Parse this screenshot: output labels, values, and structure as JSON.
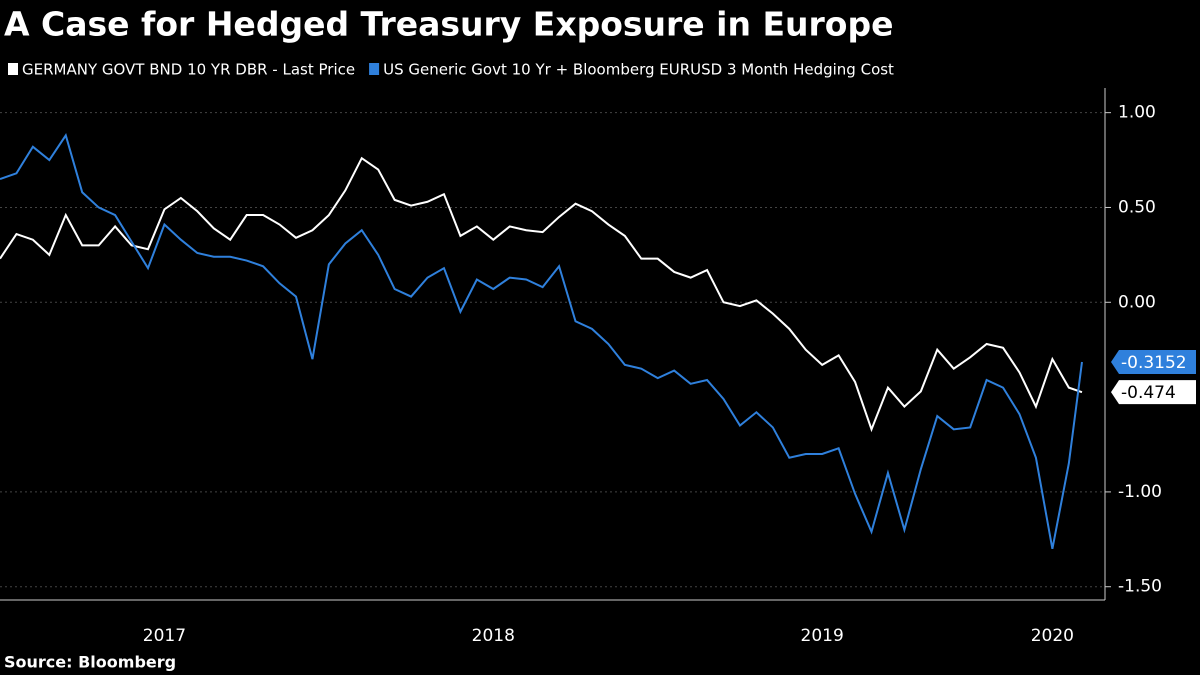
{
  "chart_data": {
    "type": "line",
    "title": "A Case for Hedged Treasury Exposure in Europe",
    "source": "Source: Bloomberg",
    "x": [
      2017.0,
      2017.05,
      2017.1,
      2017.15,
      2017.2,
      2017.25,
      2017.3,
      2017.35,
      2017.4,
      2017.45,
      2017.5,
      2017.55,
      2017.6,
      2017.65,
      2017.7,
      2017.75,
      2017.8,
      2017.85,
      2017.9,
      2017.95,
      2018.0,
      2018.05,
      2018.1,
      2018.15,
      2018.2,
      2018.25,
      2018.3,
      2018.35,
      2018.4,
      2018.45,
      2018.5,
      2018.55,
      2018.6,
      2018.65,
      2018.7,
      2018.75,
      2018.8,
      2018.85,
      2018.9,
      2018.95,
      2019.0,
      2019.05,
      2019.1,
      2019.15,
      2019.2,
      2019.25,
      2019.3,
      2019.35,
      2019.4,
      2019.45,
      2019.5,
      2019.55,
      2019.6,
      2019.65,
      2019.7,
      2019.75,
      2019.8,
      2019.85,
      2019.9,
      2019.95,
      2020.0,
      2020.05,
      2020.1,
      2020.15,
      2020.2,
      2020.25,
      2020.29
    ],
    "series": [
      {
        "name": "GERMANY GOVT BND 10 YR DBR - Last Price",
        "color": "#ffffff",
        "values": [
          0.23,
          0.36,
          0.33,
          0.25,
          0.46,
          0.3,
          0.3,
          0.4,
          0.3,
          0.28,
          0.49,
          0.55,
          0.48,
          0.39,
          0.33,
          0.46,
          0.46,
          0.41,
          0.34,
          0.38,
          0.46,
          0.59,
          0.76,
          0.7,
          0.54,
          0.51,
          0.53,
          0.57,
          0.35,
          0.4,
          0.33,
          0.4,
          0.38,
          0.37,
          0.45,
          0.52,
          0.48,
          0.41,
          0.35,
          0.23,
          0.23,
          0.16,
          0.13,
          0.17,
          0.0,
          -0.02,
          0.01,
          -0.06,
          -0.14,
          -0.25,
          -0.33,
          -0.28,
          -0.42,
          -0.67,
          -0.45,
          -0.55,
          -0.47,
          -0.25,
          -0.35,
          -0.29,
          -0.22,
          -0.24,
          -0.37,
          -0.55,
          -0.3,
          -0.45,
          -0.474
        ]
      },
      {
        "name": "US Generic Govt 10 Yr + Bloomberg EURUSD 3 Month Hedging Cost",
        "color": "#2f80dc",
        "values": [
          0.65,
          0.68,
          0.82,
          0.75,
          0.88,
          0.58,
          0.5,
          0.46,
          0.32,
          0.18,
          0.41,
          0.33,
          0.26,
          0.24,
          0.24,
          0.22,
          0.19,
          0.1,
          0.03,
          -0.3,
          0.2,
          0.31,
          0.38,
          0.25,
          0.07,
          0.03,
          0.13,
          0.18,
          -0.05,
          0.12,
          0.07,
          0.13,
          0.12,
          0.08,
          0.19,
          -0.1,
          -0.14,
          -0.22,
          -0.33,
          -0.35,
          -0.4,
          -0.36,
          -0.43,
          -0.41,
          -0.51,
          -0.65,
          -0.58,
          -0.66,
          -0.82,
          -0.8,
          -0.8,
          -0.77,
          -1.01,
          -1.21,
          -0.9,
          -1.2,
          -0.88,
          -0.6,
          -0.67,
          -0.66,
          -0.41,
          -0.45,
          -0.59,
          -0.82,
          -1.3,
          -0.85,
          -0.3152
        ]
      }
    ],
    "xlim": [
      2017.0,
      2020.36
    ],
    "xticks": [
      {
        "value": 2017.5,
        "label": "2017"
      },
      {
        "value": 2018.5,
        "label": "2018"
      },
      {
        "value": 2019.5,
        "label": "2019"
      },
      {
        "value": 2020.2,
        "label": "2020"
      }
    ],
    "ylim": [
      -1.57,
      1.13
    ],
    "yticks": [
      {
        "value": 1,
        "label": "1.00"
      },
      {
        "value": 0.5,
        "label": "0.50"
      },
      {
        "value": 0,
        "label": "0.00"
      },
      {
        "value": -1,
        "label": "-1.00"
      },
      {
        "value": -1.5,
        "label": "-1.50"
      }
    ],
    "grid": true
  }
}
